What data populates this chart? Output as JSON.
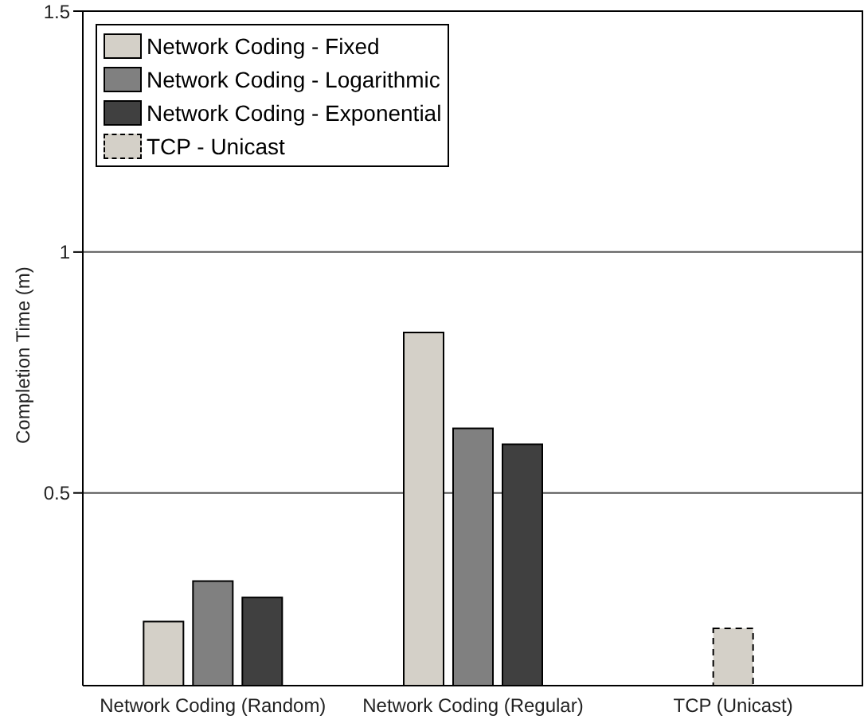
{
  "chart_data": {
    "type": "bar",
    "ylabel": "Completion Time (m)",
    "categories": [
      "Network Coding (Random)",
      "Network Coding (Regular)",
      "TCP (Unicast)"
    ],
    "series": [
      {
        "name": "Network Coding - Fixed",
        "color": "#d4d0c8",
        "values": [
          0.233,
          0.833,
          null
        ]
      },
      {
        "name": "Network Coding - Logarithmic",
        "color": "#808080",
        "values": [
          0.317,
          0.634,
          null
        ]
      },
      {
        "name": "Network Coding - Exponential",
        "color": "#404040",
        "values": [
          0.283,
          0.601,
          null
        ]
      },
      {
        "name": "TCP - Unicast",
        "color": "#d4d0c8",
        "line_style": "dashed",
        "values": [
          null,
          null,
          0.219
        ]
      }
    ],
    "ylim": [
      0.1,
      1.5
    ],
    "yticks": [
      0.5,
      1,
      1.5
    ],
    "grid": "y",
    "legend": "top left"
  }
}
